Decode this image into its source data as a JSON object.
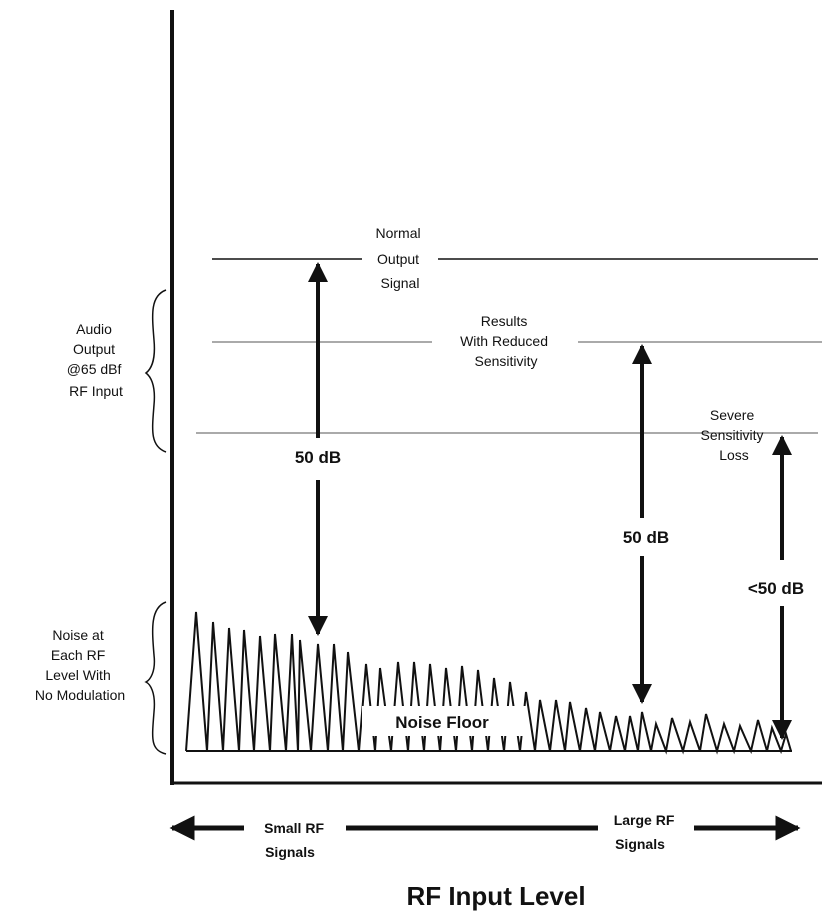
{
  "labels": {
    "normal_output": [
      "Normal",
      "Output",
      "Signal"
    ],
    "reduced_sensitivity": [
      "Results",
      "With Reduced",
      "Sensitivity"
    ],
    "severe_loss": [
      "Severe",
      "Sensitivity",
      "Loss"
    ],
    "audio_output": [
      "Audio",
      "Output",
      "@65  dBf",
      "RF Input"
    ],
    "noise_desc": [
      "Noise at",
      "Each RF",
      "Level With",
      "No Modulation"
    ],
    "db_left": "50  dB",
    "db_mid": "50  dB",
    "db_right": "<50  dB",
    "noise_floor": "Noise    Floor",
    "small_rf": [
      "Small  RF",
      "Signals"
    ],
    "large_rf": [
      "Large  RF",
      "Signals"
    ],
    "axis_title": "RF Input Level"
  }
}
